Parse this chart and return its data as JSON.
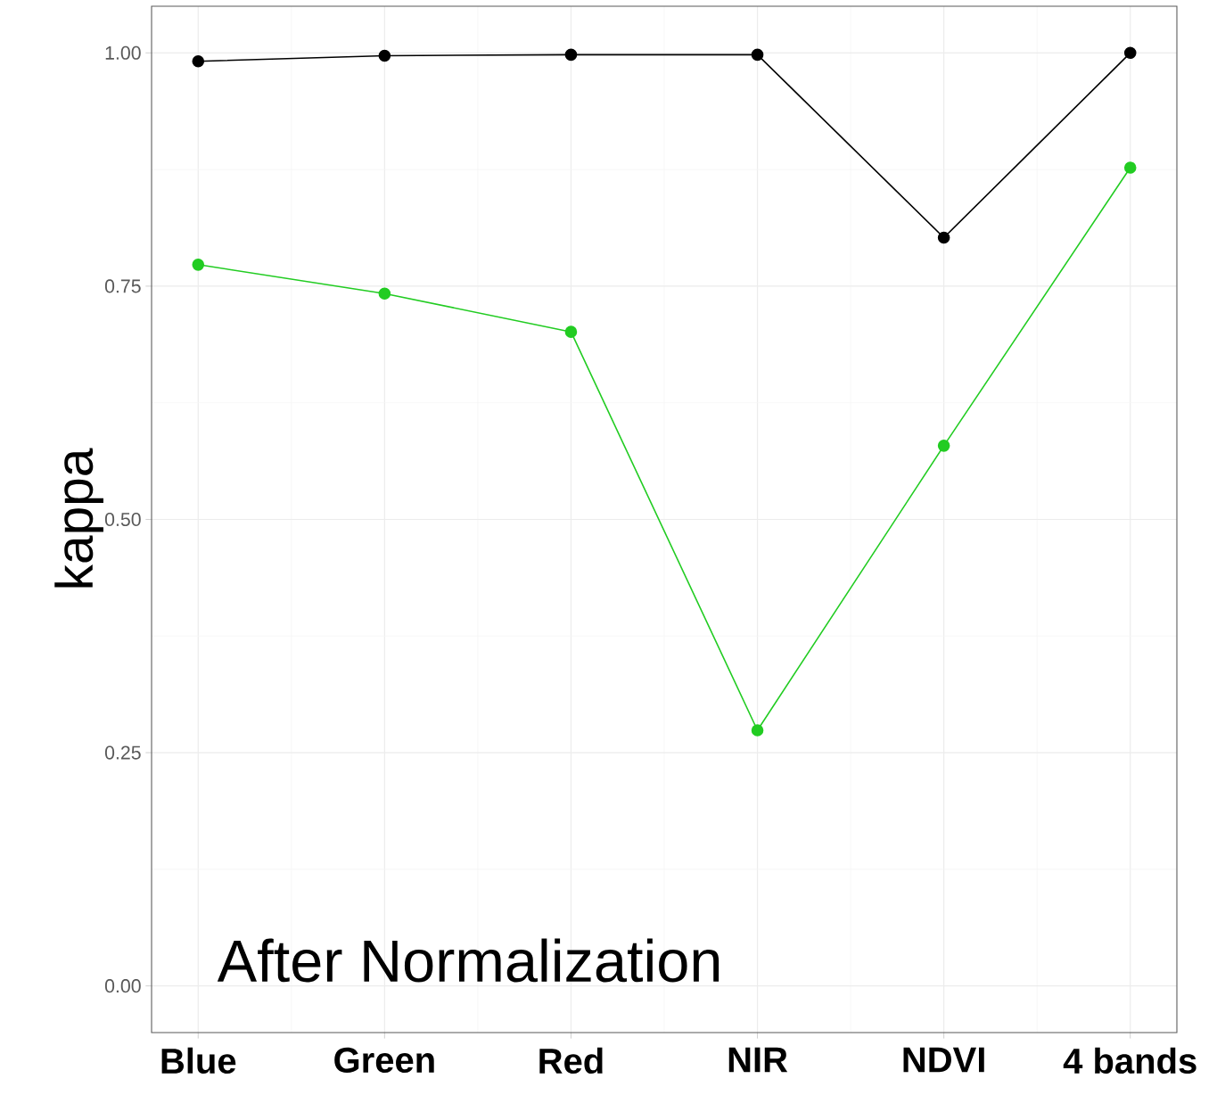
{
  "chart_data": {
    "type": "line",
    "ylabel": "kappa",
    "categories": [
      "Blue",
      "Green",
      "Red",
      "NIR",
      "NDVI",
      "4 bands"
    ],
    "series": [
      {
        "color": "#000000",
        "values": [
          0.991,
          0.997,
          0.998,
          0.998,
          0.802,
          1.0
        ]
      },
      {
        "color": "#22cc22",
        "values": [
          0.773,
          0.742,
          0.701,
          0.274,
          0.579,
          0.877
        ]
      }
    ],
    "ylim": [
      -0.05,
      1.05
    ],
    "yticks": [
      {
        "value": 0,
        "label": "0.00"
      },
      {
        "value": 0.25,
        "label": "0.25"
      },
      {
        "value": 0.5,
        "label": "0.50"
      },
      {
        "value": 0.75,
        "label": "0.75"
      },
      {
        "value": 1,
        "label": "1.00"
      }
    ],
    "annotations": [
      "After Normalization"
    ],
    "grid": true,
    "marker": "circle",
    "line_style": "solid"
  }
}
